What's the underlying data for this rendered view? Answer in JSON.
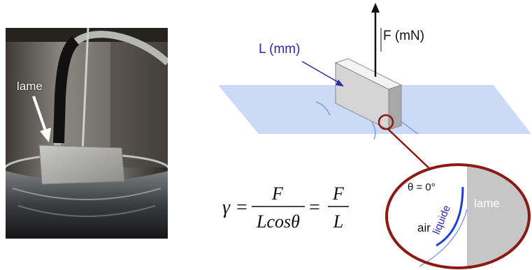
{
  "photo": {
    "arrow_label": "lame"
  },
  "diagram": {
    "force_label": "F (mN)",
    "length_label": "L (mm)",
    "formula": {
      "gamma": "γ",
      "equals": "=",
      "numerator": "F",
      "denominator1": "Lcosθ",
      "denominator2": "L"
    },
    "zoom": {
      "angle_label": "θ = 0°",
      "air_label": "air",
      "lame_label": "lame",
      "liquid_label": "liquide"
    }
  },
  "colors": {
    "liquid_plane": "#bcd0f7",
    "zoom_circle": "#8b1a12",
    "meniscus": "#1f3fd1",
    "label_blue": "#2a2aa8",
    "plate_gray": "#c6c6c6"
  }
}
